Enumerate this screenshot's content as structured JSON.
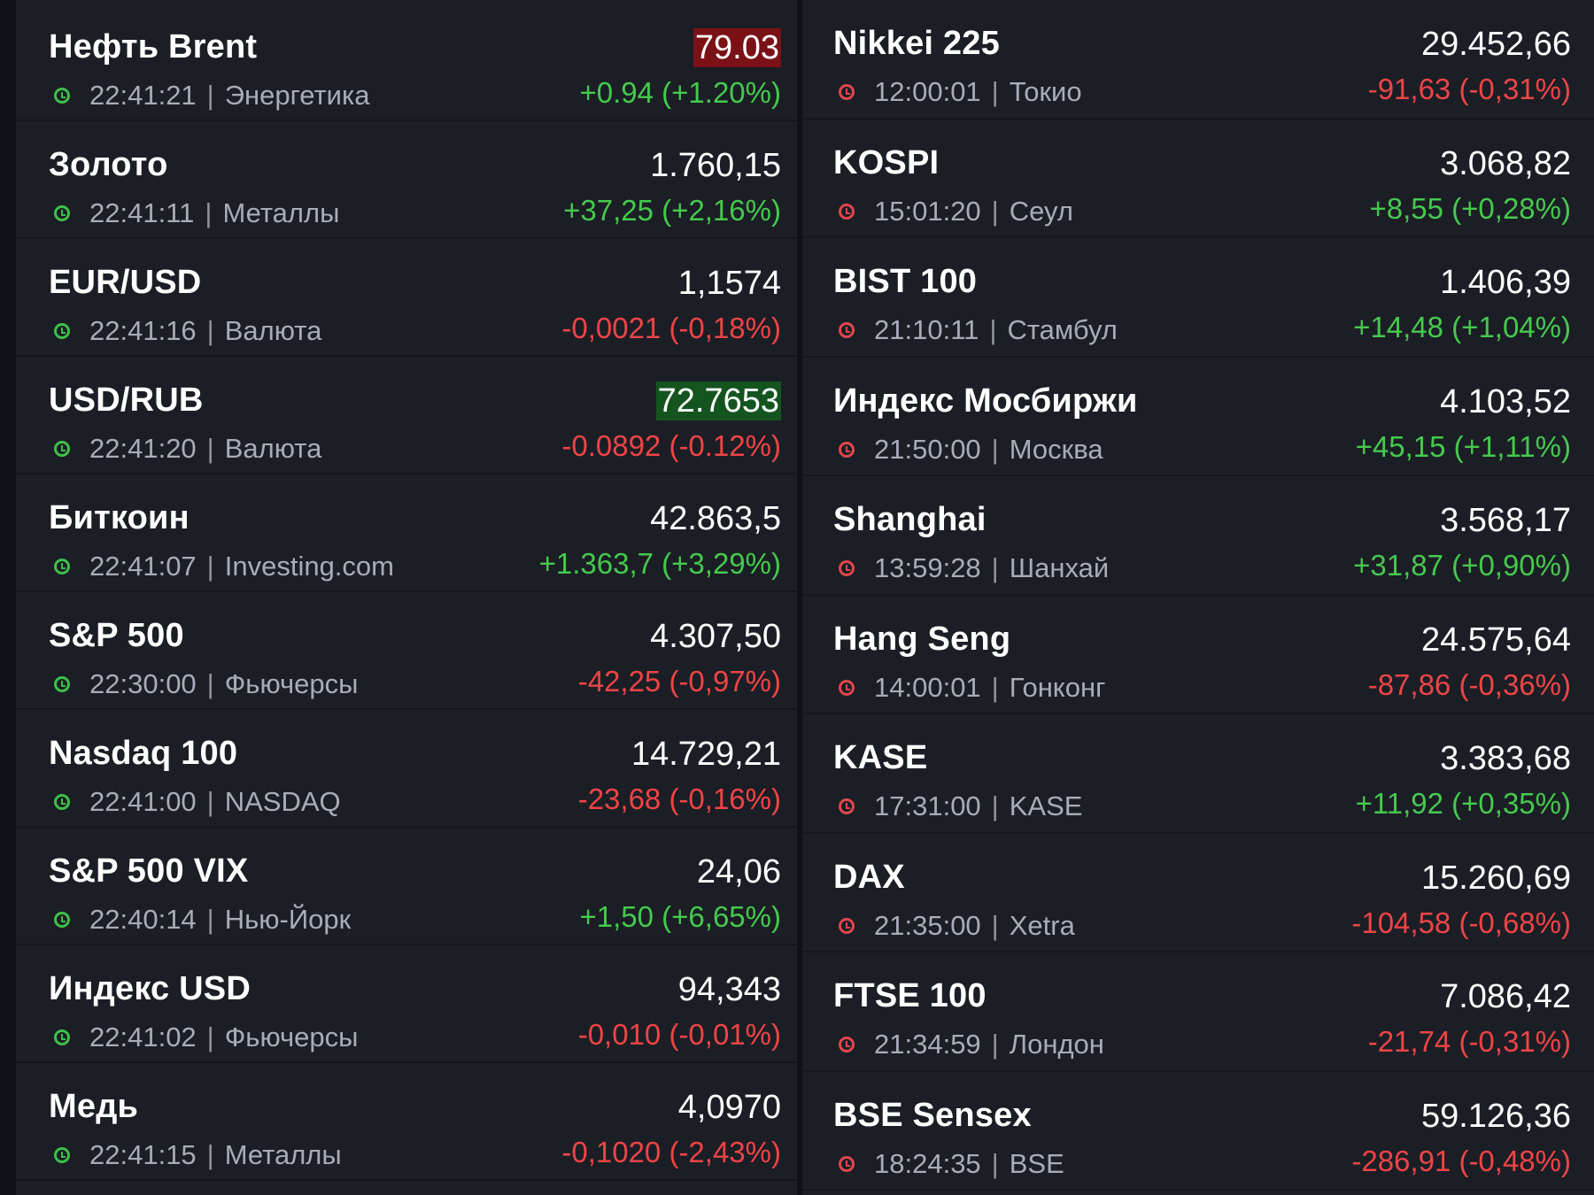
{
  "colors": {
    "background": "#0f1116",
    "panel": "#1b1e25",
    "up": "#45c94d",
    "down": "#ef4446",
    "flash_red": "#7a1116",
    "flash_green": "#14541f",
    "clock_open": "#3fbf4a",
    "clock_closed": "#e0474c"
  },
  "left": [
    {
      "name": "Нефть Brent",
      "value": "79.03",
      "time": "22:41:21",
      "category": "Энергетика",
      "change": "+0.94 (+1.20%)",
      "direction": "up",
      "highlight": "red"
    },
    {
      "name": "Золото",
      "value": "1.760,15",
      "time": "22:41:11",
      "category": "Металлы",
      "change": "+37,25 (+2,16%)",
      "direction": "up",
      "highlight": ""
    },
    {
      "name": "EUR/USD",
      "value": "1,1574",
      "time": "22:41:16",
      "category": "Валюта",
      "change": "-0,0021 (-0,18%)",
      "direction": "down",
      "highlight": ""
    },
    {
      "name": "USD/RUB",
      "value": "72.7653",
      "time": "22:41:20",
      "category": "Валюта",
      "change": "-0.0892 (-0.12%)",
      "direction": "down",
      "highlight": "green"
    },
    {
      "name": "Биткоин",
      "value": "42.863,5",
      "time": "22:41:07",
      "category": "Investing.com",
      "change": "+1.363,7 (+3,29%)",
      "direction": "up",
      "highlight": ""
    },
    {
      "name": "S&P 500",
      "value": "4.307,50",
      "time": "22:30:00",
      "category": "Фьючерсы",
      "change": "-42,25 (-0,97%)",
      "direction": "down",
      "highlight": ""
    },
    {
      "name": "Nasdaq 100",
      "value": "14.729,21",
      "time": "22:41:00",
      "category": "NASDAQ",
      "change": "-23,68 (-0,16%)",
      "direction": "down",
      "highlight": ""
    },
    {
      "name": "S&P 500 VIX",
      "value": "24,06",
      "time": "22:40:14",
      "category": "Нью-Йорк",
      "change": "+1,50 (+6,65%)",
      "direction": "up",
      "highlight": ""
    },
    {
      "name": "Индекс USD",
      "value": "94,343",
      "time": "22:41:02",
      "category": "Фьючерсы",
      "change": "-0,010 (-0,01%)",
      "direction": "down",
      "highlight": ""
    },
    {
      "name": "Медь",
      "value": "4,0970",
      "time": "22:41:15",
      "category": "Металлы",
      "change": "-0,1020 (-2,43%)",
      "direction": "down",
      "highlight": ""
    }
  ],
  "right": [
    {
      "name": "Nikkei 225",
      "value": "29.452,66",
      "time": "12:00:01",
      "category": "Токио",
      "change": "-91,63 (-0,31%)",
      "direction": "down",
      "highlight": ""
    },
    {
      "name": "KOSPI",
      "value": "3.068,82",
      "time": "15:01:20",
      "category": "Сеул",
      "change": "+8,55 (+0,28%)",
      "direction": "up",
      "highlight": ""
    },
    {
      "name": "BIST 100",
      "value": "1.406,39",
      "time": "21:10:11",
      "category": "Стамбул",
      "change": "+14,48 (+1,04%)",
      "direction": "up",
      "highlight": ""
    },
    {
      "name": "Индекс Мосбиржи",
      "value": "4.103,52",
      "time": "21:50:00",
      "category": "Москва",
      "change": "+45,15 (+1,11%)",
      "direction": "up",
      "highlight": ""
    },
    {
      "name": "Shanghai",
      "value": "3.568,17",
      "time": "13:59:28",
      "category": "Шанхай",
      "change": "+31,87 (+0,90%)",
      "direction": "up",
      "highlight": ""
    },
    {
      "name": "Hang Seng",
      "value": "24.575,64",
      "time": "14:00:01",
      "category": "Гонконг",
      "change": "-87,86 (-0,36%)",
      "direction": "down",
      "highlight": ""
    },
    {
      "name": "KASE",
      "value": "3.383,68",
      "time": "17:31:00",
      "category": "KASE",
      "change": "+11,92 (+0,35%)",
      "direction": "up",
      "highlight": ""
    },
    {
      "name": "DAX",
      "value": "15.260,69",
      "time": "21:35:00",
      "category": "Xetra",
      "change": "-104,58 (-0,68%)",
      "direction": "down",
      "highlight": ""
    },
    {
      "name": "FTSE 100",
      "value": "7.086,42",
      "time": "21:34:59",
      "category": "Лондон",
      "change": "-21,74 (-0,31%)",
      "direction": "down",
      "highlight": ""
    },
    {
      "name": "BSE Sensex",
      "value": "59.126,36",
      "time": "18:24:35",
      "category": "BSE",
      "change": "-286,91 (-0,48%)",
      "direction": "down",
      "highlight": ""
    }
  ]
}
